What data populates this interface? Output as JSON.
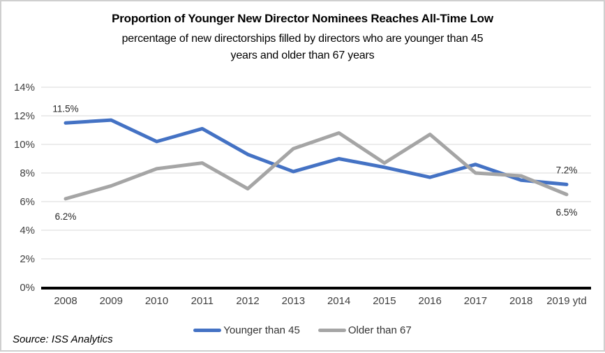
{
  "chart_data": {
    "type": "line",
    "title": "Proportion of Younger New Director Nominees Reaches All-Time Low",
    "subtitle_lines": [
      "percentage of new directorships filled by directors who are younger than 45",
      "years and older than 67 years"
    ],
    "categories": [
      "2008",
      "2009",
      "2010",
      "2011",
      "2012",
      "2013",
      "2014",
      "2015",
      "2016",
      "2017",
      "2018",
      "2019 ytd"
    ],
    "series": [
      {
        "name": "Younger than 45",
        "color": "#4472C4",
        "values": [
          11.5,
          11.7,
          10.2,
          11.1,
          9.3,
          8.1,
          9.0,
          8.4,
          7.7,
          8.6,
          7.5,
          7.2
        ]
      },
      {
        "name": "Older than 67",
        "color": "#A5A5A5",
        "values": [
          6.2,
          7.1,
          8.3,
          8.7,
          6.9,
          9.7,
          10.8,
          8.7,
          10.7,
          8.0,
          7.8,
          6.5
        ]
      }
    ],
    "y_axis": {
      "min": 0,
      "max": 14,
      "tick_labels": [
        "0%",
        "2%",
        "4%",
        "6%",
        "8%",
        "10%",
        "12%",
        "14%"
      ]
    },
    "grid": true,
    "legend_position": "bottom",
    "annotations": [
      {
        "text": "11.5%",
        "series": 0,
        "index": 0,
        "position": "above"
      },
      {
        "text": "6.2%",
        "series": 1,
        "index": 0,
        "position": "below"
      },
      {
        "text": "7.2%",
        "series": 0,
        "index": 11,
        "position": "above"
      },
      {
        "text": "6.5%",
        "series": 1,
        "index": 11,
        "position": "below"
      }
    ],
    "source": "Source: ISS Analytics"
  },
  "colors": {
    "gridline": "#D9D9D9",
    "axis_line": "#000000",
    "tick_text": "#3F3F3F",
    "label_text": "#262626",
    "frame_border": "#CFCFCF"
  }
}
